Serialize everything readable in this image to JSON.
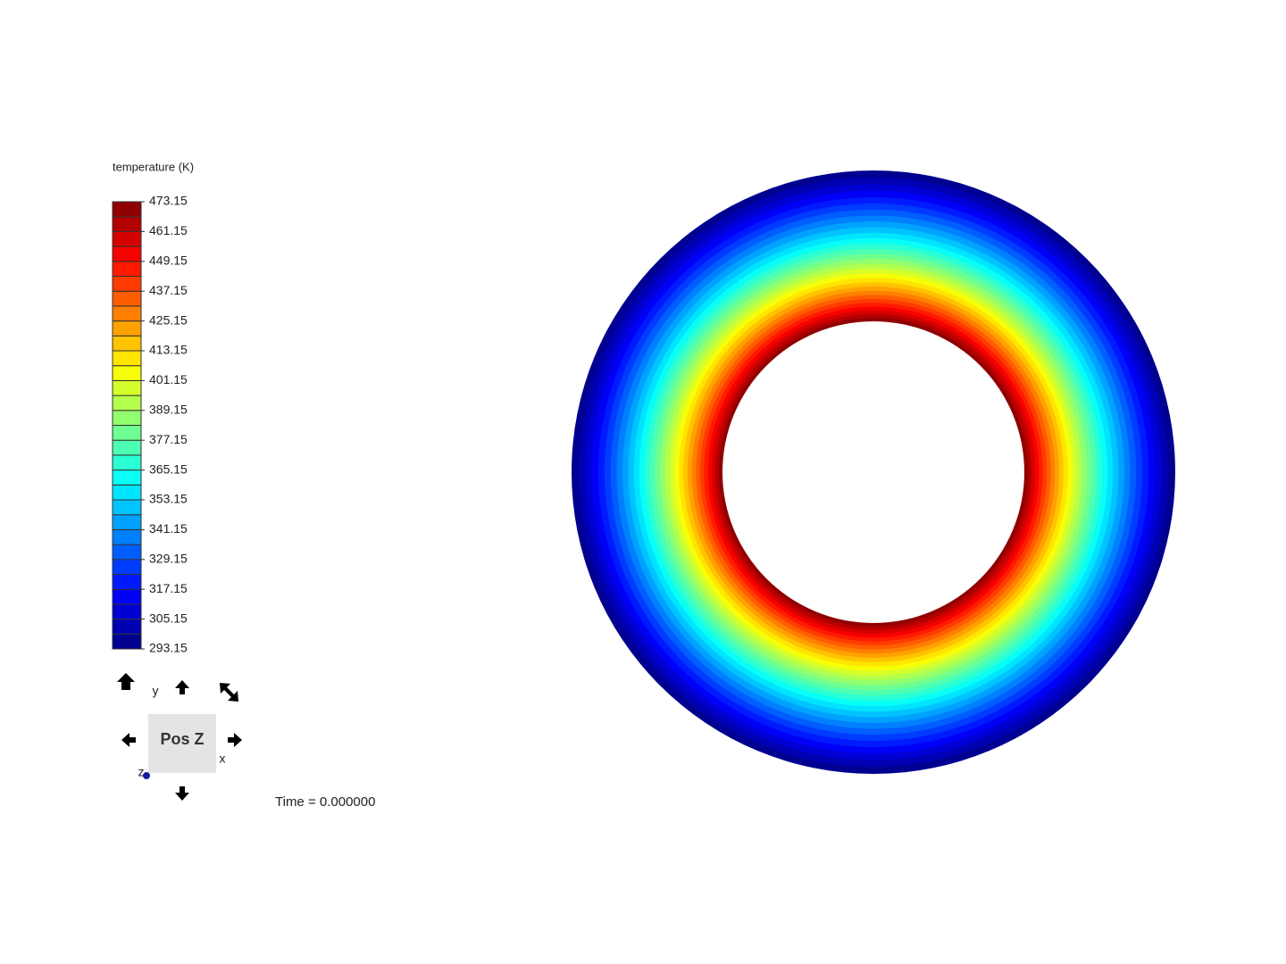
{
  "legend": {
    "title": "temperature (K)",
    "ticks": [
      473.15,
      461.15,
      449.15,
      437.15,
      425.15,
      413.15,
      401.15,
      389.15,
      377.15,
      365.15,
      353.15,
      341.15,
      329.15,
      317.15,
      305.15,
      293.15
    ]
  },
  "view_cube": {
    "face": "Pos Z",
    "axes": {
      "x": "x",
      "y": "y",
      "z": "z"
    }
  },
  "time": "Time = 0.000000"
}
